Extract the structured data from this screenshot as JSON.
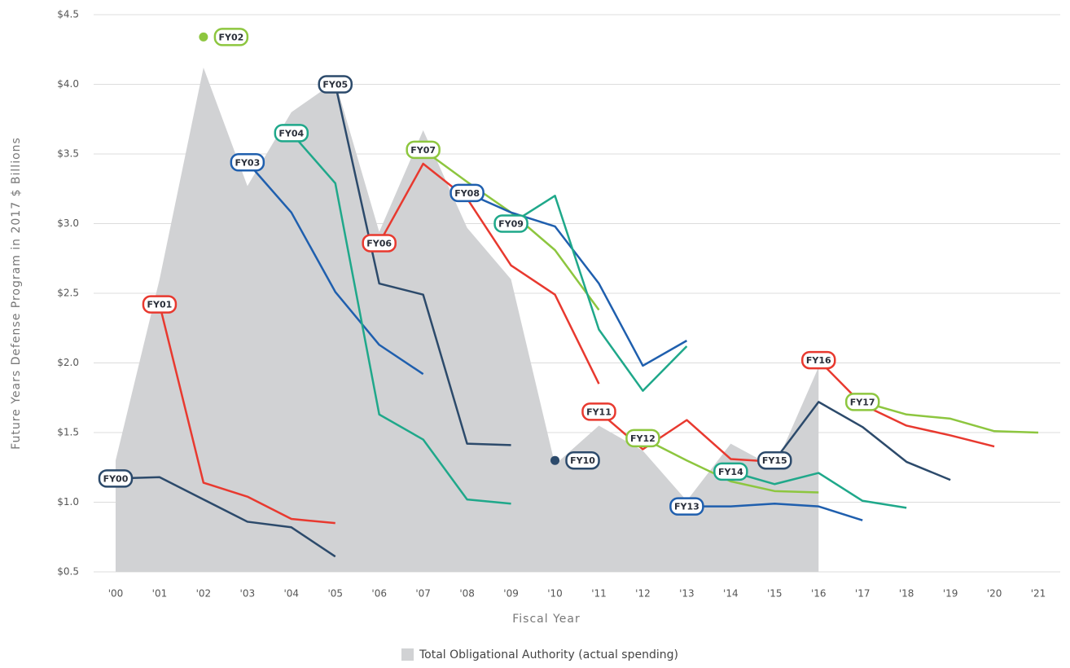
{
  "chart_data": {
    "type": "line",
    "xlabel": "Fiscal Year",
    "ylabel": "Future Years Defense Program in 2017 $ Billions",
    "categories": [
      "'00",
      "'01",
      "'02",
      "'03",
      "'04",
      "'05",
      "'06",
      "'07",
      "'08",
      "'09",
      "'10",
      "'11",
      "'12",
      "'13",
      "'14",
      "'15",
      "'16",
      "'17",
      "'18",
      "'19",
      "'20",
      "'21"
    ],
    "ylim": [
      0.5,
      4.5
    ],
    "yticks": [
      {
        "value": 0.5,
        "label": "$0.5"
      },
      {
        "value": 1,
        "label": "$1.0"
      },
      {
        "value": 1.5,
        "label": "$1.5"
      },
      {
        "value": 2,
        "label": "$2.0"
      },
      {
        "value": 2.5,
        "label": "$2.5"
      },
      {
        "value": 3,
        "label": "$3.0"
      },
      {
        "value": 3.5,
        "label": "$3.5"
      },
      {
        "value": 4,
        "label": "$4.0"
      },
      {
        "value": 4.5,
        "label": "$4.5"
      }
    ],
    "grid": true,
    "area": {
      "name": "Total Obligational Authority (actual spending)",
      "color": "#d1d2d4",
      "values": [
        1.3,
        2.6,
        4.12,
        3.27,
        3.8,
        4.02,
        2.94,
        3.67,
        2.97,
        2.6,
        1.27,
        1.55,
        1.37,
        1.01,
        1.42,
        1.25,
        1.97,
        null,
        null,
        null,
        null,
        null
      ]
    },
    "series": [
      {
        "name": "FY00",
        "color": "#2c4a6b",
        "values": [
          1.17,
          1.18,
          1.02,
          0.86,
          0.82,
          0.61,
          null,
          null,
          null,
          null,
          null,
          null,
          null,
          null,
          null,
          null,
          null,
          null,
          null,
          null,
          null,
          null
        ]
      },
      {
        "name": "FY01",
        "color": "#e8392f",
        "values": [
          null,
          2.42,
          1.14,
          1.04,
          0.88,
          0.85,
          null,
          null,
          null,
          null,
          null,
          null,
          null,
          null,
          null,
          null,
          null,
          null,
          null,
          null,
          null,
          null
        ]
      },
      {
        "name": "FY02",
        "color": "#8dc63f",
        "values": [
          null,
          null,
          4.34,
          null,
          null,
          null,
          null,
          null,
          null,
          null,
          null,
          null,
          null,
          null,
          null,
          null,
          null,
          null,
          null,
          null,
          null,
          null
        ]
      },
      {
        "name": "FY03",
        "color": "#1f5fae",
        "values": [
          null,
          null,
          null,
          3.44,
          3.08,
          2.51,
          2.13,
          1.92,
          null,
          null,
          null,
          null,
          null,
          null,
          null,
          null,
          null,
          null,
          null,
          null,
          null,
          null
        ]
      },
      {
        "name": "FY04",
        "color": "#1fa88a",
        "values": [
          null,
          null,
          null,
          null,
          3.65,
          3.29,
          1.63,
          1.45,
          1.02,
          0.99,
          null,
          null,
          null,
          null,
          null,
          null,
          null,
          null,
          null,
          null,
          null,
          null
        ]
      },
      {
        "name": "FY05",
        "color": "#2c4a6b",
        "values": [
          null,
          null,
          null,
          null,
          null,
          4.0,
          2.57,
          2.49,
          1.42,
          1.41,
          null,
          null,
          null,
          null,
          null,
          null,
          null,
          null,
          null,
          null,
          null,
          null
        ]
      },
      {
        "name": "FY06",
        "color": "#e8392f",
        "values": [
          null,
          null,
          null,
          null,
          null,
          null,
          2.86,
          3.43,
          3.18,
          2.7,
          2.49,
          1.85,
          null,
          null,
          null,
          null,
          null,
          null,
          null,
          null,
          null,
          null
        ]
      },
      {
        "name": "FY07",
        "color": "#8dc63f",
        "values": [
          null,
          null,
          null,
          null,
          null,
          null,
          null,
          3.53,
          3.3,
          3.08,
          2.81,
          2.38,
          null,
          null,
          null,
          null,
          null,
          null,
          null,
          null,
          null,
          null
        ]
      },
      {
        "name": "FY08",
        "color": "#1f5fae",
        "values": [
          null,
          null,
          null,
          null,
          null,
          null,
          null,
          null,
          3.22,
          3.08,
          2.98,
          2.57,
          1.98,
          2.16,
          null,
          null,
          null,
          null,
          null,
          null,
          null,
          null
        ]
      },
      {
        "name": "FY09",
        "color": "#1fa88a",
        "values": [
          null,
          null,
          null,
          null,
          null,
          null,
          null,
          null,
          null,
          3.0,
          3.2,
          2.24,
          1.8,
          2.12,
          null,
          null,
          null,
          null,
          null,
          null,
          null,
          null
        ]
      },
      {
        "name": "FY10",
        "color": "#2c4a6b",
        "values": [
          null,
          null,
          null,
          null,
          null,
          null,
          null,
          null,
          null,
          null,
          1.3,
          null,
          null,
          null,
          null,
          null,
          null,
          null,
          null,
          null,
          null,
          null
        ]
      },
      {
        "name": "FY11",
        "color": "#e8392f",
        "values": [
          null,
          null,
          null,
          null,
          null,
          null,
          null,
          null,
          null,
          null,
          null,
          1.65,
          1.38,
          1.59,
          1.31,
          1.29,
          null,
          null,
          null,
          null,
          null,
          null
        ]
      },
      {
        "name": "FY12",
        "color": "#8dc63f",
        "values": [
          null,
          null,
          null,
          null,
          null,
          null,
          null,
          null,
          null,
          null,
          null,
          null,
          1.46,
          1.3,
          1.15,
          1.08,
          1.07,
          null,
          null,
          null,
          null,
          null
        ]
      },
      {
        "name": "FY13",
        "color": "#1f5fae",
        "values": [
          null,
          null,
          null,
          null,
          null,
          null,
          null,
          null,
          null,
          null,
          null,
          null,
          null,
          0.97,
          0.97,
          0.99,
          0.97,
          0.87,
          null,
          null,
          null,
          null
        ]
      },
      {
        "name": "FY14",
        "color": "#1fa88a",
        "values": [
          null,
          null,
          null,
          null,
          null,
          null,
          null,
          null,
          null,
          null,
          null,
          null,
          null,
          null,
          1.22,
          1.13,
          1.21,
          1.01,
          0.96,
          null,
          null,
          null
        ]
      },
      {
        "name": "FY15",
        "color": "#2c4a6b",
        "values": [
          null,
          null,
          null,
          null,
          null,
          null,
          null,
          null,
          null,
          null,
          null,
          null,
          null,
          null,
          null,
          1.3,
          1.72,
          1.54,
          1.29,
          1.16,
          null,
          null
        ]
      },
      {
        "name": "FY16",
        "color": "#e8392f",
        "values": [
          null,
          null,
          null,
          null,
          null,
          null,
          null,
          null,
          null,
          null,
          null,
          null,
          null,
          null,
          null,
          null,
          2.02,
          1.7,
          1.55,
          1.48,
          1.4,
          null
        ]
      },
      {
        "name": "FY17",
        "color": "#8dc63f",
        "values": [
          null,
          null,
          null,
          null,
          null,
          null,
          null,
          null,
          null,
          null,
          null,
          null,
          null,
          null,
          null,
          null,
          null,
          1.72,
          1.63,
          1.6,
          1.51,
          1.5
        ]
      }
    ]
  }
}
